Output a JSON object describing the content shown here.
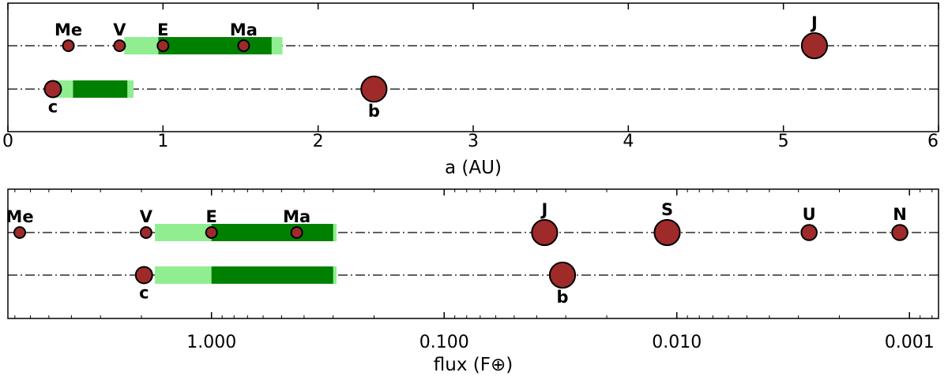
{
  "colors": {
    "planet_fill": "#9e2a2a",
    "planet_stroke": "#000000",
    "hz_optimistic": "#90ee90",
    "hz_conservative": "#008000",
    "line": "#000000"
  },
  "chart_data": [
    {
      "type": "scatter",
      "xlabel": "a (AU)",
      "xscale": "linear",
      "xlim": [
        0,
        6
      ],
      "xticks": [
        0,
        1,
        2,
        3,
        4,
        5,
        6
      ],
      "xtick_labels": [
        "0",
        "1",
        "2",
        "3",
        "4",
        "5",
        "6"
      ],
      "rows": [
        {
          "row": "upper",
          "habitable_zone": {
            "optimistic": [
              0.75,
              1.77
            ],
            "conservative": [
              0.97,
              1.7
            ]
          },
          "bodies": [
            {
              "label": "Me",
              "x": 0.39,
              "size": 1.0,
              "label_pos": "above"
            },
            {
              "label": "V",
              "x": 0.72,
              "size": 1.0,
              "label_pos": "above"
            },
            {
              "label": "E",
              "x": 1.0,
              "size": 1.0,
              "label_pos": "above"
            },
            {
              "label": "Ma",
              "x": 1.52,
              "size": 1.0,
              "label_pos": "above"
            },
            {
              "label": "J",
              "x": 5.2,
              "size": 2.3,
              "label_pos": "above"
            }
          ]
        },
        {
          "row": "lower",
          "habitable_zone": {
            "optimistic": [
              0.3,
              0.81
            ],
            "conservative": [
              0.42,
              0.77
            ]
          },
          "bodies": [
            {
              "label": "c",
              "x": 0.29,
              "size": 1.5,
              "label_pos": "below"
            },
            {
              "label": "b",
              "x": 2.36,
              "size": 2.3,
              "label_pos": "below"
            }
          ]
        }
      ]
    },
    {
      "type": "scatter",
      "xlabel": "flux (F⊕)",
      "xscale": "log",
      "x_direction": "reversed",
      "xlim": [
        7.5,
        0.00075
      ],
      "xticks": [
        1.0,
        0.1,
        0.01,
        0.001
      ],
      "xtick_labels": [
        "1.000",
        "0.100",
        "0.010",
        "0.001"
      ],
      "rows": [
        {
          "row": "upper",
          "habitable_zone": {
            "optimistic": [
              1.75,
              0.29
            ],
            "conservative": [
              1.0,
              0.3
            ]
          },
          "bodies": [
            {
              "label": "Me",
              "x": 6.67,
              "size": 1.0,
              "label_pos": "above"
            },
            {
              "label": "V",
              "x": 1.91,
              "size": 1.0,
              "label_pos": "above"
            },
            {
              "label": "E",
              "x": 1.0,
              "size": 1.0,
              "label_pos": "above"
            },
            {
              "label": "Ma",
              "x": 0.43,
              "size": 1.0,
              "label_pos": "above"
            },
            {
              "label": "J",
              "x": 0.037,
              "size": 2.3,
              "label_pos": "above"
            },
            {
              "label": "S",
              "x": 0.011,
              "size": 2.3,
              "label_pos": "above"
            },
            {
              "label": "U",
              "x": 0.0027,
              "size": 1.4,
              "label_pos": "above"
            },
            {
              "label": "N",
              "x": 0.0011,
              "size": 1.4,
              "label_pos": "above"
            }
          ]
        },
        {
          "row": "lower",
          "habitable_zone": {
            "optimistic": [
              1.75,
              0.29
            ],
            "conservative": [
              1.0,
              0.3
            ]
          },
          "bodies": [
            {
              "label": "c",
              "x": 1.95,
              "size": 1.5,
              "label_pos": "below"
            },
            {
              "label": "b",
              "x": 0.031,
              "size": 2.3,
              "label_pos": "below"
            }
          ]
        }
      ]
    }
  ]
}
